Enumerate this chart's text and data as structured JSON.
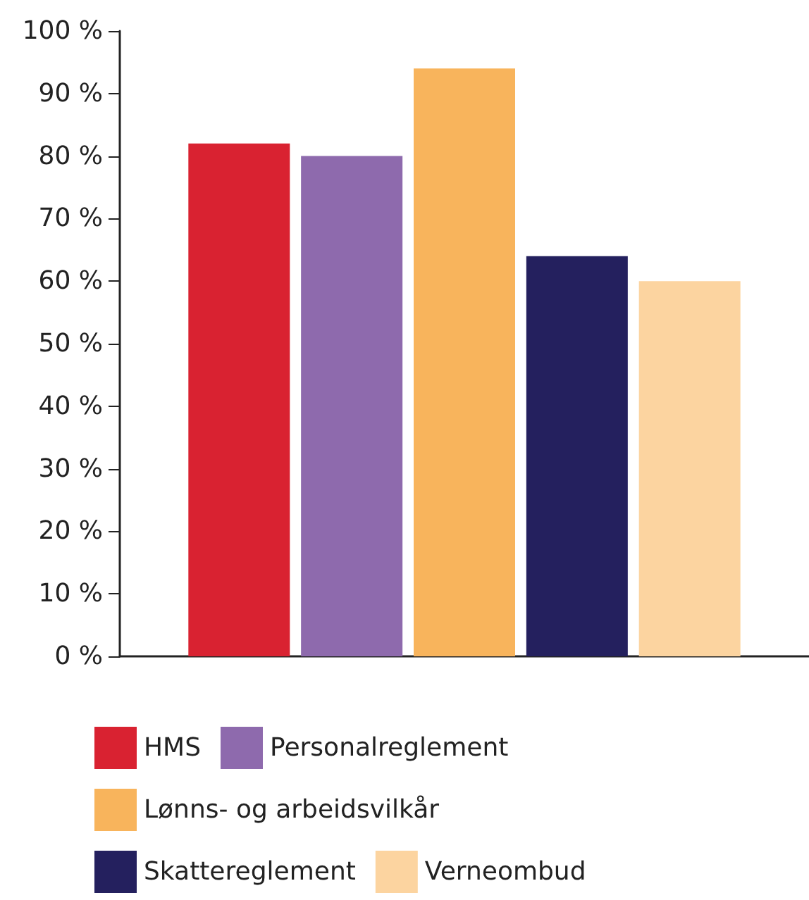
{
  "chart_data": {
    "type": "bar",
    "categories": [
      null
    ],
    "series": [
      {
        "name": "HMS",
        "color": "#d92231",
        "values": [
          82
        ]
      },
      {
        "name": "Personalreglement",
        "color": "#8e6aad",
        "values": [
          80
        ]
      },
      {
        "name": "Lønns- og arbeidsvilkår",
        "color": "#f8b45c",
        "values": [
          94
        ]
      },
      {
        "name": "Skattereglement",
        "color": "#24205e",
        "values": [
          64
        ]
      },
      {
        "name": "Verneombud",
        "color": "#fcd4a0",
        "values": [
          60
        ]
      }
    ],
    "ylim": [
      0,
      100
    ],
    "yticks": [
      {
        "value": 0,
        "label": "0 %"
      },
      {
        "value": 10,
        "label": "10 %"
      },
      {
        "value": 20,
        "label": "20 %"
      },
      {
        "value": 30,
        "label": "30 %"
      },
      {
        "value": 40,
        "label": "40 %"
      },
      {
        "value": 50,
        "label": "50 %"
      },
      {
        "value": 60,
        "label": "60 %"
      },
      {
        "value": 70,
        "label": "70 %"
      },
      {
        "value": 80,
        "label": "80 %"
      },
      {
        "value": 90,
        "label": "90 %"
      },
      {
        "value": 100,
        "label": "100 %"
      }
    ],
    "grid": false,
    "legend": "bottom"
  }
}
